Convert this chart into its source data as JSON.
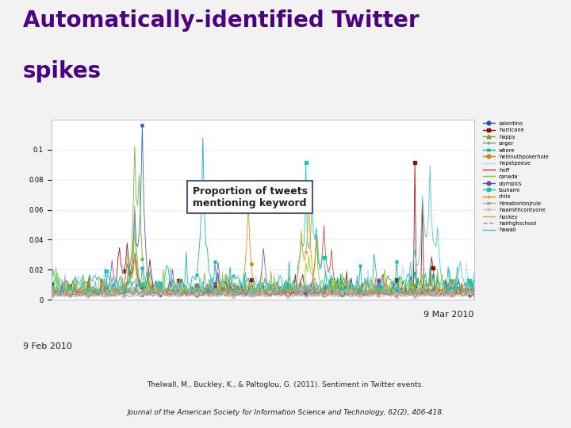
{
  "title_line1": "Automatically-identified Twitter",
  "title_line2": "spikes",
  "title_color": "#4b0082",
  "annotation_text": "Proportion of tweets\nmentioning keyword",
  "xlabel_left": "9 Feb 2010",
  "xlabel_right": "9 Mar 2010",
  "ylabel_values": [
    0,
    0.02,
    0.04,
    0.06,
    0.08,
    0.1
  ],
  "ytick_labels": [
    "0",
    "0.02",
    "0.04",
    "0.06",
    "0.08",
    "0.1"
  ],
  "ylim": [
    0,
    0.12
  ],
  "n_points": 280,
  "legend_entries": [
    {
      "label": "valentino",
      "color": "#1f5cb4",
      "marker": "o",
      "linestyle": "-"
    },
    {
      "label": "hurricane",
      "color": "#8b0000",
      "marker": "s",
      "linestyle": "-"
    },
    {
      "label": "happy",
      "color": "#6aaa2a",
      "marker": "^",
      "linestyle": "-"
    },
    {
      "label": "anger",
      "color": "#888888",
      "marker": "+",
      "linestyle": "-"
    },
    {
      "label": "where",
      "color": "#00aaaa",
      "marker": "x",
      "linestyle": "-"
    },
    {
      "label": "hellmuthpokerhole",
      "color": "#cc8800",
      "marker": "o",
      "linestyle": "-"
    },
    {
      "label": "hnpetpeeve",
      "color": "#aaddee",
      "marker": "none",
      "linestyle": "-"
    },
    {
      "label": "hnff",
      "color": "#cc3333",
      "marker": "none",
      "linestyle": "-"
    },
    {
      "label": "canada",
      "color": "#88cc00",
      "marker": "none",
      "linestyle": "-"
    },
    {
      "label": "olympics",
      "color": "#7744aa",
      "marker": "o",
      "linestyle": "-"
    },
    {
      "label": "tsunami",
      "color": "#00ccaa",
      "marker": "s",
      "linestyle": "-"
    },
    {
      "label": "chile",
      "color": "#ff8800",
      "marker": "+",
      "linestyle": "-"
    },
    {
      "label": "hireaborionjrule",
      "color": "#aaaaaa",
      "marker": "x",
      "linestyle": "-"
    },
    {
      "label": "haamithcontyone",
      "color": "#ddbbbb",
      "marker": "x",
      "linestyle": "-"
    },
    {
      "label": "hockey",
      "color": "#aabb44",
      "marker": "none",
      "linestyle": "-"
    },
    {
      "label": "hairhghschool",
      "color": "#888888",
      "marker": "none",
      "linestyle": "--"
    },
    {
      "label": "hawaii",
      "color": "#44bbcc",
      "marker": "none",
      "linestyle": "-"
    }
  ],
  "background_color": "#f2f2f2",
  "chart_bg": "#ffffff",
  "footnote_normal": "Thelwall, M., Buckley, K., & Paltoglou, G. (2011). ",
  "footnote_link": "Sentiment in Twitter events",
  "footnote_normal2": ".",
  "footnote_italic": "Journal of the American Society for Information Science and Technology,",
  "footnote_italic2": " 62(2), 406-418."
}
